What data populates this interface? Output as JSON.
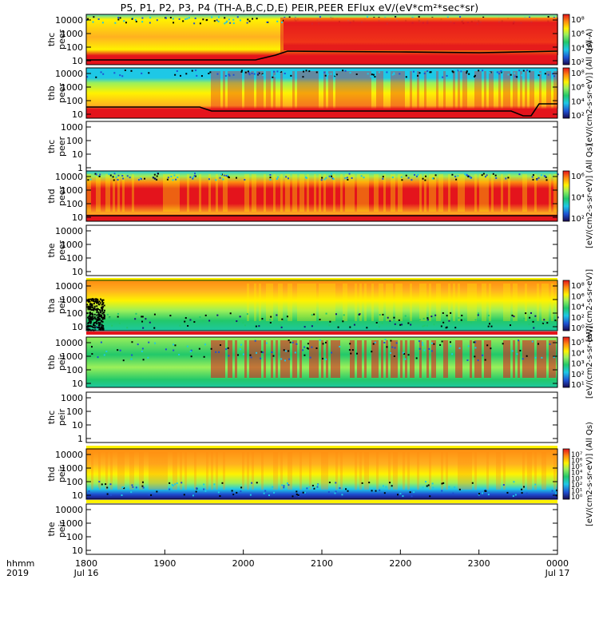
{
  "title": "P5, P1, P2, P3, P4 (TH-A,B,C,D,E) PEIR,PEER EFlux eV/(eV*cm²*sec*sr)",
  "colors": {
    "red": "#e4141c",
    "orange": "#ff8c10",
    "yellow": "#fff200",
    "lightgreen": "#9cf05a",
    "green": "#22c86a",
    "cyan": "#1ec8e6",
    "blue": "#1e50d2",
    "navy": "#1a1478",
    "black": "#000000"
  },
  "chart_data": {
    "type": "heatmap",
    "xlabel_top": "hhmm",
    "xlabel_bottom": "2019",
    "x_ticks": [
      "1800",
      "1900",
      "2000",
      "2100",
      "2200",
      "2300",
      "0000"
    ],
    "x_date_labels": [
      {
        "tick": "1800",
        "label": "Jul 16"
      },
      {
        "tick": "0000",
        "label": "Jul 17"
      }
    ],
    "x_range": [
      "2019-07-16 18:00",
      "2019-07-17 00:00"
    ],
    "y_scale": "log",
    "panels": [
      {
        "ylabel": [
          "thc",
          "peer"
        ],
        "yticks": [
          "10000",
          "1000",
          "100",
          "10"
        ],
        "has_data": true,
        "colorbar": {
          "ticks": [
            "10⁸",
            "10⁶",
            "10⁴",
            "10²"
          ],
          "label": "(Al-A)"
        }
      },
      {
        "ylabel": [
          "thb",
          "peer"
        ],
        "yticks": [
          "10000",
          "1000",
          "100",
          "10"
        ],
        "has_data": true,
        "colorbar": {
          "ticks": [
            "10⁸",
            "10⁶",
            "10⁴",
            "10²"
          ],
          "label": "[eV/(cm2-s-sr-eV)] (All Qs)"
        }
      },
      {
        "ylabel": [
          "thc",
          "peer"
        ],
        "yticks": [
          "1000",
          "100",
          "10",
          "1"
        ],
        "has_data": false,
        "colorbar": null
      },
      {
        "ylabel": [
          "thd",
          "peer"
        ],
        "yticks": [
          "10000",
          "1000",
          "100",
          "10"
        ],
        "has_data": true,
        "colorbar": {
          "ticks": [
            "10⁶",
            "10⁴",
            "10²"
          ],
          "label": "[eV/(cm2-s-sr-eV)] (All Qs)"
        }
      },
      {
        "ylabel": [
          "the",
          "peer"
        ],
        "yticks": [
          "10000",
          "1000",
          "100",
          "10"
        ],
        "has_data": false,
        "colorbar": null
      },
      {
        "ylabel": [
          "tha",
          "peir"
        ],
        "yticks": [
          "10000",
          "1000",
          "100",
          "10"
        ],
        "has_data": true,
        "colorbar": {
          "ticks": [
            "10⁸",
            "10⁶",
            "10⁴",
            "10²",
            "10⁰"
          ],
          "label": "[eV/(cm2-s-sr-eV)]"
        }
      },
      {
        "ylabel": [
          "thb",
          "peir"
        ],
        "yticks": [
          "10000",
          "1000",
          "100",
          "10"
        ],
        "has_data": true,
        "colorbar": {
          "ticks": [
            "10⁵",
            "10⁴",
            "10³",
            "10²",
            "10¹"
          ],
          "label": "[eV/(cm2-s-sr-eV)]"
        }
      },
      {
        "ylabel": [
          "thc",
          "peir"
        ],
        "yticks": [
          "1000",
          "100",
          "10",
          "1"
        ],
        "has_data": false,
        "colorbar": null
      },
      {
        "ylabel": [
          "thd",
          "peir"
        ],
        "yticks": [
          "10000",
          "1000",
          "100",
          "10"
        ],
        "has_data": true,
        "colorbar": {
          "ticks": [
            "10⁷",
            "10⁶",
            "10⁵",
            "10⁴",
            "10³",
            "10²",
            "10¹",
            "10⁰"
          ],
          "label": "[eV/(cm2-s-sr-eV)] (All Qs)"
        }
      },
      {
        "ylabel": [
          "the",
          "peir"
        ],
        "yticks": [
          "10000",
          "1000",
          "100",
          "10"
        ],
        "has_data": false,
        "colorbar": null
      }
    ]
  }
}
